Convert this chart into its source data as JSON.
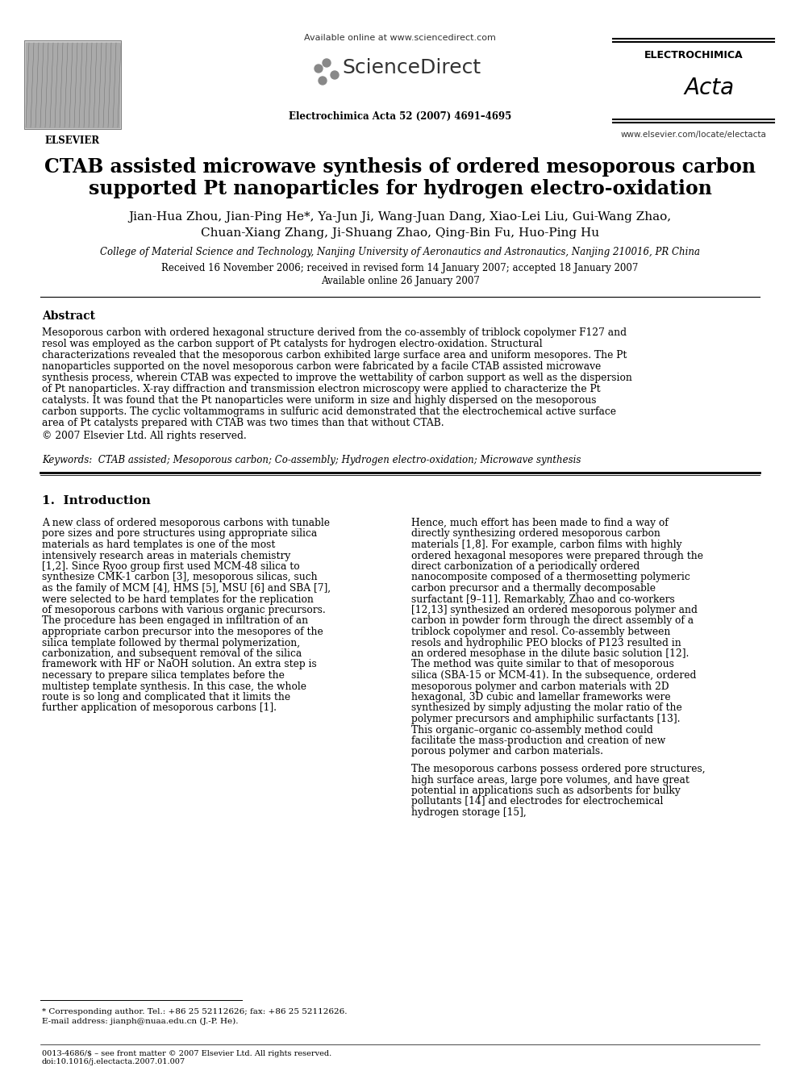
{
  "bg_color": "#ffffff",
  "header": {
    "available_online": "Available online at www.sciencedirect.com",
    "sciencedirect": "ScienceDirect",
    "elsevier_label": "ELSEVIER",
    "journal_line": "Electrochimica Acta 52 (2007) 4691–4695",
    "electrochimica": "ELECTROCHIMICA",
    "acta": "Acta",
    "website": "www.elsevier.com/locate/electacta"
  },
  "title_line1": "CTAB assisted microwave synthesis of ordered mesoporous carbon",
  "title_line2": "supported Pt nanoparticles for hydrogen electro-oxidation",
  "authors_line1": "Jian-Hua Zhou, Jian-Ping He*, Ya-Jun Ji, Wang-Juan Dang, Xiao-Lei Liu, Gui-Wang Zhao,",
  "authors_line2": "Chuan-Xiang Zhang, Ji-Shuang Zhao, Qing-Bin Fu, Huo-Ping Hu",
  "affiliation": "College of Material Science and Technology, Nanjing University of Aeronautics and Astronautics, Nanjing 210016, PR China",
  "received": "Received 16 November 2006; received in revised form 14 January 2007; accepted 18 January 2007",
  "available": "Available online 26 January 2007",
  "abstract_heading": "Abstract",
  "abstract_text": "Mesoporous carbon with ordered hexagonal structure derived from the co-assembly of triblock copolymer F127 and resol was employed as the carbon support of Pt catalysts for hydrogen electro-oxidation. Structural characterizations revealed that the mesoporous carbon exhibited large surface area and uniform mesopores. The Pt nanoparticles supported on the novel mesoporous carbon were fabricated by a facile CTAB assisted microwave synthesis process, wherein CTAB was expected to improve the wettability of carbon support as well as the dispersion of Pt nanoparticles. X-ray diffraction and transmission electron microscopy were applied to characterize the Pt catalysts. It was found that the Pt nanoparticles were uniform in size and highly dispersed on the mesoporous carbon supports. The cyclic voltammograms in sulfuric acid demonstrated that the electrochemical active surface area of Pt catalysts prepared with CTAB was two times than that without CTAB.",
  "copyright": "© 2007 Elsevier Ltd. All rights reserved.",
  "keywords_label": "Keywords:",
  "keywords_text": "CTAB assisted; Mesoporous carbon; Co-assembly; Hydrogen electro-oxidation; Microwave synthesis",
  "section1_heading": "1.  Introduction",
  "intro_left": "A new class of ordered mesoporous carbons with tunable pore sizes and pore structures using appropriate silica materials as hard templates is one of the most intensively research areas in materials chemistry [1,2]. Since Ryoo group first used MCM-48 silica to synthesize CMK-1 carbon [3], mesoporous silicas, such as the family of MCM [4], HMS [5], MSU [6] and SBA [7], were selected to be hard templates for the replication of mesoporous carbons with various organic precursors. The procedure has been engaged in infiltration of an appropriate carbon precursor into the mesopores of the silica template followed by thermal polymerization, carbonization, and subsequent removal of the silica framework with HF or NaOH solution. An extra step is necessary to prepare silica templates before the multistep template synthesis. In this case, the whole route is so long and complicated that it limits the further application of mesoporous carbons [1].",
  "intro_right": "Hence, much effort has been made to find a way of directly synthesizing ordered mesoporous carbon materials [1,8]. For example, carbon films with highly ordered hexagonal mesopores were prepared through the direct carbonization of a periodically ordered nanocomposite composed of a thermosetting polymeric carbon precursor and a thermally decomposable surfactant [9–11]. Remarkably, Zhao and co-workers [12,13] synthesized an ordered mesoporous polymer and carbon in powder form through the direct assembly of a triblock copolymer and resol. Co-assembly between resols and hydrophilic PEO blocks of P123 resulted in an ordered mesophase in the dilute basic solution [12]. The method was quite similar to that of mesoporous silica (SBA-15 or MCM-41). In the subsequence, ordered mesoporous polymer and carbon materials with 2D hexagonal, 3D cubic and lamellar frameworks were synthesized by simply adjusting the molar ratio of the polymer precursors and amphiphilic surfactants [13]. This organic–organic co-assembly method could facilitate the mass-production and creation of new porous polymer and carbon materials.",
  "intro_right2": "The mesoporous carbons possess ordered pore structures, high surface areas, large pore volumes, and have great potential in applications such as adsorbents for bulky pollutants [14] and electrodes for electrochemical hydrogen storage [15],",
  "footnote_star": "* Corresponding author. Tel.: +86 25 52112626; fax: +86 25 52112626.",
  "footnote_email": "E-mail address: jianph@nuaa.edu.cn (J.-P. He).",
  "footer_issn": "0013-4686/$ – see front matter © 2007 Elsevier Ltd. All rights reserved.",
  "footer_doi": "doi:10.1016/j.electacta.2007.01.007"
}
